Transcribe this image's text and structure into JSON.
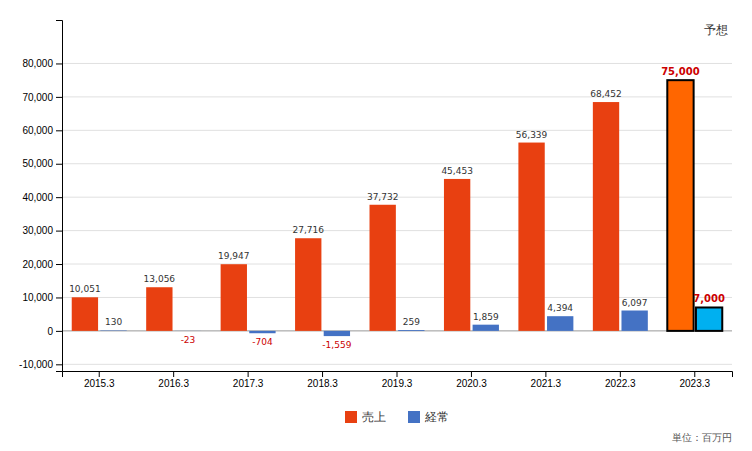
{
  "chart_data": {
    "type": "bar",
    "categories": [
      "2015.3",
      "2016.3",
      "2017.3",
      "2018.3",
      "2019.3",
      "2020.3",
      "2021.3",
      "2022.3",
      "2023.3"
    ],
    "series": [
      {
        "name": "売上",
        "color": "#e84011",
        "colors": [
          "#e84011",
          "#e84011",
          "#e84011",
          "#e84011",
          "#e84011",
          "#e84011",
          "#e84011",
          "#e84011",
          "#ff6600"
        ],
        "values": [
          10051,
          13056,
          19947,
          27716,
          37732,
          45453,
          56339,
          68452,
          75000
        ],
        "value_labels": [
          "10,051",
          "13,056",
          "19,947",
          "27,716",
          "37,732",
          "45,453",
          "56,339",
          "68,452",
          "75,000"
        ]
      },
      {
        "name": "経常",
        "color": "#4472c4",
        "colors": [
          "#4472c4",
          "#4472c4",
          "#4472c4",
          "#4472c4",
          "#4472c4",
          "#4472c4",
          "#4472c4",
          "#4472c4",
          "#00b0f0"
        ],
        "values": [
          130,
          -23,
          -704,
          -1559,
          259,
          1859,
          4394,
          6097,
          7000
        ],
        "value_labels": [
          "130",
          "-23",
          "-704",
          "-1,559",
          "259",
          "1,859",
          "4,394",
          "6,097",
          "7,000"
        ]
      }
    ],
    "annotations": [
      "予想",
      "単位：百万円"
    ],
    "ylim": [
      -12000,
      93000
    ],
    "yticks": [
      {
        "value": -10000,
        "label": "-10,000"
      },
      0,
      {
        "value": 10000,
        "label": "10,000"
      },
      {
        "value": 20000,
        "label": "20,000"
      },
      {
        "value": 30000,
        "label": "30,000"
      },
      {
        "value": 40000,
        "label": "40,000"
      },
      {
        "value": 50000,
        "label": "50,000"
      },
      {
        "value": 60000,
        "label": "60,000"
      },
      {
        "value": 70000,
        "label": "70,000"
      },
      {
        "value": 80000,
        "label": "80,000"
      }
    ],
    "grid": true,
    "legend": "bottom",
    "data_labels": true
  }
}
